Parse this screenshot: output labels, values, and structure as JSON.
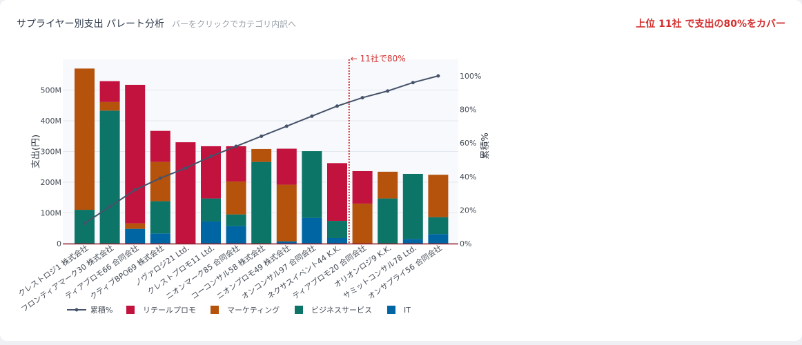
{
  "header": {
    "title": "サプライヤー別支出 パレート分析",
    "subtitle": "バーをクリックでカテゴリ内訳へ",
    "callout": "上位 11社 で支出の80%をカバー"
  },
  "colors": {
    "retail": "#c2123e",
    "marketing": "#b5520b",
    "business": "#0d7568",
    "it": "#0065a3",
    "line": "#45526a",
    "threshold": "#d32f2f"
  },
  "chart_data": {
    "type": "bar",
    "stacked": true,
    "categories": [
      "クレストロジ1 株式会社",
      "フロンティアマーク30 株式会社",
      "ティアブロモ66 合同会社",
      "クティブBPO69 株式会社",
      "ノヴァロジ21 Ltd.",
      "クレストプロモ11 Ltd.",
      "ニオンマーク85 合同会社",
      "コーコンサル58 株式会社",
      "ニオンプロモ49 株式会社",
      "オンコンサル97 合同会社",
      "ネクサスイベント44 K.K.",
      "ティアプロモ20 合同会社",
      "オリオンロジ9 K.K.",
      "サミットコンサル78 Ltd.",
      "オンサプライ56 合同会社"
    ],
    "series": [
      {
        "name": "IT",
        "values": [
          0,
          0,
          48,
          33,
          0,
          72,
          57,
          0,
          7,
          84,
          18,
          0,
          0,
          15,
          31
        ]
      },
      {
        "name": "ビジネスサービス",
        "values": [
          110,
          433,
          0,
          105,
          0,
          75,
          38,
          266,
          0,
          217,
          56,
          0,
          147,
          212,
          55
        ]
      },
      {
        "name": "マーケティング",
        "values": [
          460,
          28,
          18,
          128,
          0,
          0,
          107,
          42,
          185,
          0,
          0,
          130,
          87,
          0,
          138
        ]
      },
      {
        "name": "リテールプロモ",
        "values": [
          0,
          68,
          451,
          101,
          330,
          170,
          115,
          0,
          117,
          0,
          188,
          106,
          0,
          0,
          0
        ]
      }
    ],
    "cumulative": {
      "name": "累積%",
      "values": [
        12,
        22,
        32,
        39,
        45,
        52,
        58,
        64,
        70,
        76,
        82,
        87,
        91,
        96,
        100
      ]
    },
    "threshold": {
      "index": 10,
      "label": "← 11社で80%"
    },
    "ylabel": "支出(円)",
    "y2label": "累積%",
    "ylim": [
      0,
      600
    ],
    "y2lim": [
      0,
      100
    ],
    "yticks": [
      {
        "value": 0,
        "label": "0"
      },
      {
        "value": 100,
        "label": "100M"
      },
      {
        "value": 200,
        "label": "200M"
      },
      {
        "value": 300,
        "label": "300M"
      },
      {
        "value": 400,
        "label": "400M"
      },
      {
        "value": 500,
        "label": "500M"
      }
    ],
    "y2ticks": [
      {
        "value": 0,
        "label": "0%"
      },
      {
        "value": 20,
        "label": "20%"
      },
      {
        "value": 40,
        "label": "40%"
      },
      {
        "value": 60,
        "label": "60%"
      },
      {
        "value": 80,
        "label": "80%"
      },
      {
        "value": 100,
        "label": "100%"
      }
    ],
    "legend": [
      "累積%",
      "リテールプロモ",
      "マーケティング",
      "ビジネスサービス",
      "IT"
    ],
    "legend_position": "bottom-left",
    "grid": true
  }
}
